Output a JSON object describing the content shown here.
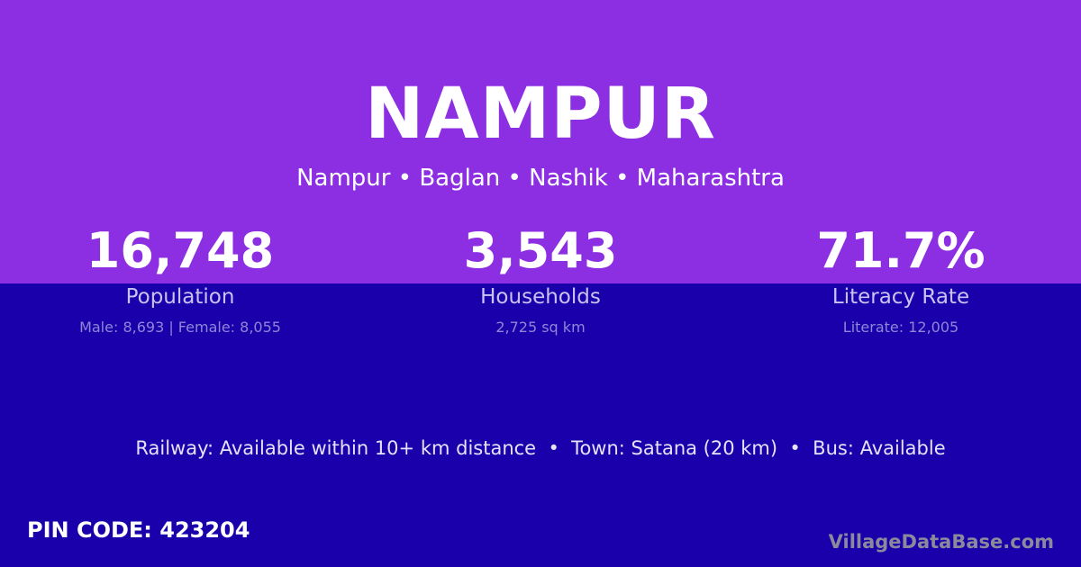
{
  "title": "NAMPUR",
  "subtitle": "Nampur • Baglan • Nashik • Maharashtra",
  "stats": [
    {
      "value": "16,748",
      "label": "Population",
      "detail": "Male: 8,693 | Female: 8,055"
    },
    {
      "value": "3,543",
      "label": "Households",
      "detail": "2,725 sq km"
    },
    {
      "value": "71.7%",
      "label": "Literacy Rate",
      "detail": "Literate: 12,005"
    }
  ],
  "info": "Railway: Available within 10+ km distance  •  Town: Satana (20 km)  •  Bus: Available",
  "pin": "PIN CODE: 423204",
  "watermark": "VillageDataBase.com",
  "colors": {
    "top": "#8c2ee2",
    "bottom": "#1a00aa"
  }
}
